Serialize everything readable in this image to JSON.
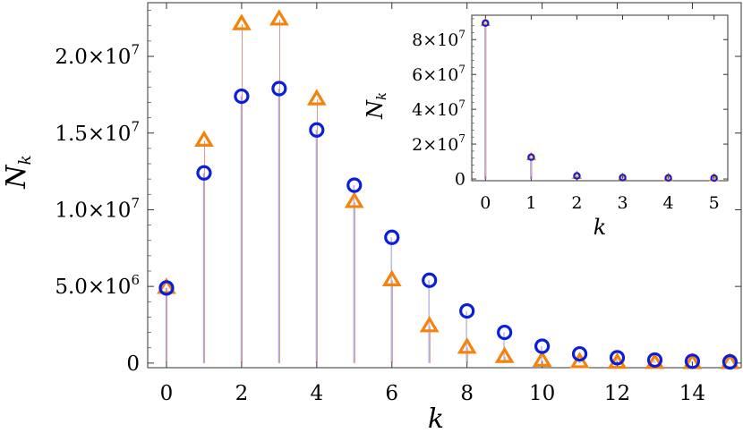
{
  "chart_data": [
    {
      "type": "scatter",
      "panel": "main",
      "xlabel": "k",
      "ylabel_base": "N",
      "ylabel_sub": "k",
      "xlim": [
        -0.5,
        15.3
      ],
      "ylim": [
        -300000,
        23500000
      ],
      "x_ticks": [
        0,
        2,
        4,
        6,
        8,
        10,
        12,
        14
      ],
      "x_tick_labels": [
        "0",
        "2",
        "4",
        "6",
        "8",
        "10",
        "12",
        "14"
      ],
      "y_ticks": [
        0,
        5000000,
        10000000,
        15000000,
        20000000
      ],
      "y_tick_labels": [
        {
          "mant": "0",
          "exp": ""
        },
        {
          "mant": "5.0×10",
          "exp": "6"
        },
        {
          "mant": "1.0×10",
          "exp": "7"
        },
        {
          "mant": "1.5×10",
          "exp": "7"
        },
        {
          "mant": "2.0×10",
          "exp": "7"
        }
      ],
      "x": [
        0,
        1,
        2,
        3,
        4,
        5,
        6,
        7,
        8,
        9,
        10,
        11,
        12,
        13,
        14,
        15
      ],
      "series": [
        {
          "marker": "circle",
          "color": "#0a1edc",
          "stem_color": "#8c8cd2",
          "values": [
            4900000,
            12400000,
            17400000,
            17900000,
            15200000,
            11600000,
            8200000,
            5400000,
            3400000,
            2000000,
            1100000,
            600000,
            350000,
            200000,
            120000,
            80000
          ]
        },
        {
          "marker": "triangle",
          "color": "#f5820a",
          "stem_color": "#d28c8c",
          "values": [
            4900000,
            14500000,
            22100000,
            22400000,
            17200000,
            10500000,
            5400000,
            2400000,
            1000000,
            400000,
            150000,
            60000,
            20000,
            8000,
            3000,
            1000
          ]
        }
      ]
    },
    {
      "type": "scatter",
      "panel": "inset",
      "xlabel": "k",
      "ylabel_base": "N",
      "ylabel_sub": "k",
      "xlim": [
        -0.3,
        5.3
      ],
      "ylim": [
        -1000000,
        94000000
      ],
      "x_ticks": [
        0,
        1,
        2,
        3,
        4,
        5
      ],
      "x_tick_labels": [
        "0",
        "1",
        "2",
        "3",
        "4",
        "5"
      ],
      "y_ticks": [
        0,
        20000000,
        40000000,
        60000000,
        80000000
      ],
      "y_tick_labels": [
        {
          "mant": "0",
          "exp": ""
        },
        {
          "mant": "2×10",
          "exp": "7"
        },
        {
          "mant": "4×10",
          "exp": "7"
        },
        {
          "mant": "6×10",
          "exp": "7"
        },
        {
          "mant": "8×10",
          "exp": "7"
        }
      ],
      "x": [
        0,
        1,
        2,
        3,
        4,
        5
      ],
      "series": [
        {
          "marker": "circle",
          "color": "#0a1edc",
          "stem_color": "#8c8cd2",
          "values": [
            89500000,
            12500000,
            1800000,
            800000,
            600000,
            500000
          ]
        },
        {
          "marker": "triangle",
          "color": "#f5820a",
          "stem_color": "#d28c8c",
          "values": [
            89500000,
            12500000,
            1800000,
            800000,
            600000,
            500000
          ]
        }
      ]
    }
  ]
}
